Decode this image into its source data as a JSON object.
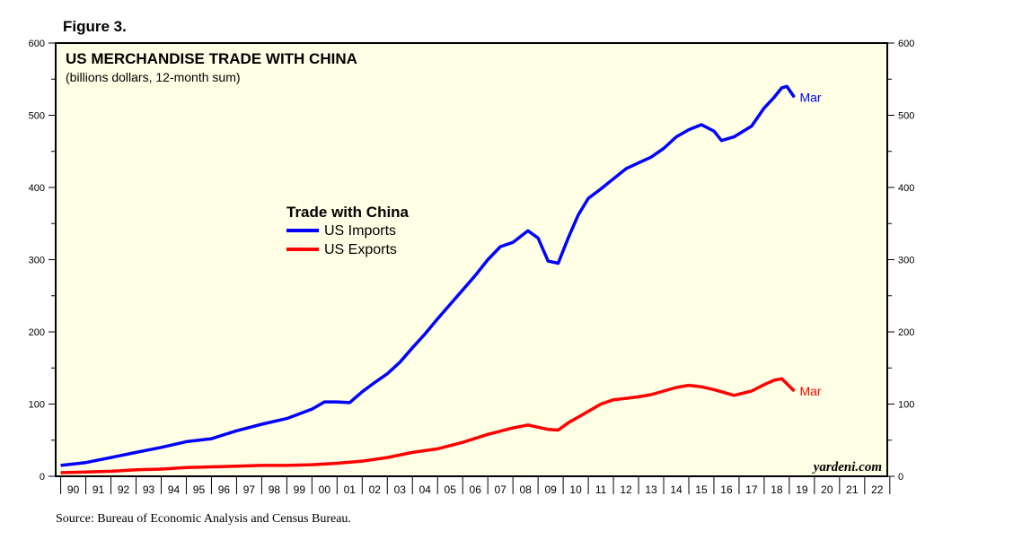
{
  "figure_label": "Figure 3.",
  "source": "Source: Bureau of Economic Analysis and Census Bureau.",
  "watermark": "yardeni.com",
  "colors": {
    "background": "#ffffe6",
    "imports": "#0000ff",
    "exports": "#ff0000"
  },
  "chart_data": {
    "type": "line",
    "title": "US MERCHANDISE TRADE WITH CHINA",
    "subtitle": "(billions dollars, 12-month sum)",
    "legend_title": "Trade with China",
    "legend_position": "center-left",
    "xlabel": "",
    "ylabel": "",
    "xlim": [
      1989.8,
      2022.9
    ],
    "ylim": [
      0,
      600
    ],
    "y_ticks": [
      0,
      100,
      200,
      300,
      400,
      500,
      600
    ],
    "x_tick_labels": [
      "90",
      "91",
      "92",
      "93",
      "94",
      "95",
      "96",
      "97",
      "98",
      "99",
      "00",
      "01",
      "02",
      "03",
      "04",
      "05",
      "06",
      "07",
      "08",
      "09",
      "10",
      "11",
      "12",
      "13",
      "14",
      "15",
      "16",
      "17",
      "18",
      "19",
      "20",
      "21",
      "22"
    ],
    "series": [
      {
        "name": "US Imports",
        "color": "#0000ff",
        "end_label": "Mar",
        "x": [
          1990,
          1991,
          1992,
          1993,
          1994,
          1995,
          1996,
          1997,
          1998,
          1999,
          2000,
          2000.5,
          2001,
          2001.5,
          2002,
          2002.5,
          2003,
          2003.5,
          2004,
          2004.5,
          2005,
          2005.5,
          2006,
          2006.5,
          2007,
          2007.5,
          2008,
          2008.6,
          2009,
          2009.4,
          2009.8,
          2010.2,
          2010.6,
          2011,
          2011.5,
          2012,
          2012.5,
          2013,
          2013.5,
          2014,
          2014.5,
          2015,
          2015.5,
          2016,
          2016.3,
          2016.8,
          2017.5,
          2018,
          2018.4,
          2018.7,
          2018.9,
          2019.2
        ],
        "values": [
          15,
          19,
          26,
          33,
          40,
          48,
          52,
          63,
          72,
          80,
          93,
          103,
          103,
          102,
          117,
          130,
          142,
          158,
          178,
          197,
          218,
          238,
          258,
          278,
          300,
          318,
          324,
          340,
          330,
          298,
          295,
          330,
          362,
          385,
          398,
          412,
          426,
          434,
          442,
          454,
          470,
          480,
          487,
          478,
          465,
          470,
          485,
          510,
          525,
          538,
          540,
          525
        ]
      },
      {
        "name": "US Exports",
        "color": "#ff0000",
        "end_label": "Mar",
        "x": [
          1990,
          1991,
          1992,
          1993,
          1994,
          1995,
          1996,
          1997,
          1998,
          1999,
          2000,
          2001,
          2002,
          2003,
          2004,
          2005,
          2006,
          2007,
          2008,
          2008.6,
          2009,
          2009.4,
          2009.8,
          2010.2,
          2011,
          2011.5,
          2012,
          2012.5,
          2013,
          2013.5,
          2014,
          2014.5,
          2015,
          2015.5,
          2016,
          2016.4,
          2016.8,
          2017.5,
          2018,
          2018.4,
          2018.7,
          2019.2
        ],
        "values": [
          5,
          6,
          7,
          9,
          10,
          12,
          13,
          14,
          15,
          15,
          16,
          18,
          21,
          26,
          33,
          38,
          47,
          58,
          67,
          71,
          68,
          65,
          64,
          74,
          90,
          100,
          106,
          108,
          110,
          113,
          118,
          123,
          126,
          124,
          120,
          116,
          112,
          118,
          127,
          133,
          135,
          118
        ]
      }
    ]
  }
}
